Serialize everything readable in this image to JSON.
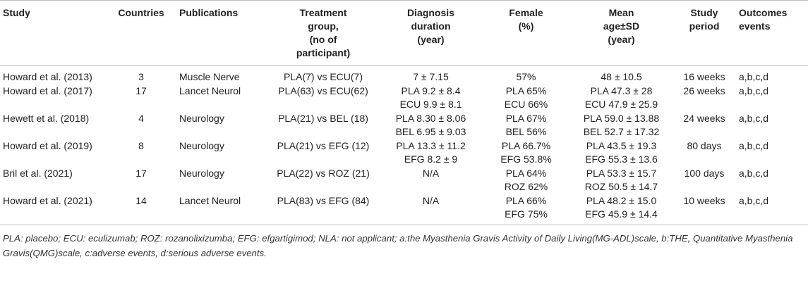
{
  "table": {
    "headers": [
      {
        "key": "study",
        "label": "Study"
      },
      {
        "key": "countries",
        "label": "Countries"
      },
      {
        "key": "publications",
        "label": "Publications"
      },
      {
        "key": "treatment",
        "label": "Treatment\ngroup,\n(no of\nparticipant)"
      },
      {
        "key": "duration",
        "label": "Diagnosis\nduration\n(year)"
      },
      {
        "key": "female",
        "label": "Female\n(%)"
      },
      {
        "key": "age",
        "label": "Mean\nage±SD\n(year)"
      },
      {
        "key": "period",
        "label": "Study\nperiod"
      },
      {
        "key": "outcomes",
        "label": "Outcomes\nevents"
      }
    ],
    "rows": [
      {
        "study": "Howard et al. (2013)",
        "countries": "3",
        "publications": "Muscle Nerve",
        "treatment": "PLA(7) vs ECU(7)",
        "duration": [
          "7 ± 7.15"
        ],
        "female": [
          "57%"
        ],
        "age": [
          "48 ± 10.5"
        ],
        "period": "16 weeks",
        "outcomes": "a,b,c,d"
      },
      {
        "study": "Howard et al. (2017)",
        "countries": "17",
        "publications": "Lancet Neurol",
        "treatment": "PLA(63) vs ECU(62)",
        "duration": [
          "PLA 9.2 ± 8.4",
          "ECU 9.9 ± 8.1"
        ],
        "female": [
          "PLA 65%",
          "ECU 66%"
        ],
        "age": [
          "PLA 47.3 ± 28",
          "ECU 47.9 ± 25.9"
        ],
        "period": "26 weeks",
        "outcomes": "a,b,c,d"
      },
      {
        "study": "Hewett et al. (2018)",
        "countries": "4",
        "publications": "Neurology",
        "treatment": "PLA(21) vs BEL (18)",
        "duration": [
          "PLA 8.30 ± 8.06",
          "BEL 6.95 ± 9.03"
        ],
        "female": [
          "PLA 67%",
          "BEL 56%"
        ],
        "age": [
          "PLA 59.0 ± 13.88",
          "BEL 52.7 ± 17.32"
        ],
        "period": "24 weeks",
        "outcomes": "a,b,c,d"
      },
      {
        "study": "Howard et al. (2019)",
        "countries": "8",
        "publications": "Neurology",
        "treatment": "PLA(21) vs EFG (12)",
        "duration": [
          "PLA 13.3 ± 11.2",
          "EFG 8.2 ± 9"
        ],
        "female": [
          "PLA 66.7%",
          "EFG 53.8%"
        ],
        "age": [
          "PLA 43.5 ± 19.3",
          "EFG 55.3 ± 13.6"
        ],
        "period": "80 days",
        "outcomes": "a,b,c,d"
      },
      {
        "study": "Bril et al. (2021)",
        "countries": "17",
        "publications": "Neurology",
        "treatment": "PLA(22) vs ROZ (21)",
        "duration": [
          "N/A"
        ],
        "female": [
          "PLA 64%",
          "ROZ 62%"
        ],
        "age": [
          "PLA 53.3 ± 15.7",
          "ROZ 50.5 ± 14.7"
        ],
        "period": "100 days",
        "outcomes": "a,b,c,d"
      },
      {
        "study": "Howard et al. (2021)",
        "countries": "14",
        "publications": "Lancet Neurol",
        "treatment": "PLA(83) vs EFG (84)",
        "duration": [
          "N/A"
        ],
        "female": [
          "PLA 66%",
          "EFG 75%"
        ],
        "age": [
          "PLA 48.2 ± 15.0",
          "EFG 45.9 ± 14.4"
        ],
        "period": "10 weeks",
        "outcomes": "a,b,c,d"
      }
    ]
  },
  "footnote": "PLA: placebo; ECU: eculizumab; ROZ: rozanolixizumba; EFG: efgartigimod; NLA: not applicant; a:the Myasthenia Gravis Activity of Daily Living(MG-ADL)scale, b:THE, Quantitative Myasthenia Gravis(QMG)scale, c:adverse events, d:serious adverse events."
}
